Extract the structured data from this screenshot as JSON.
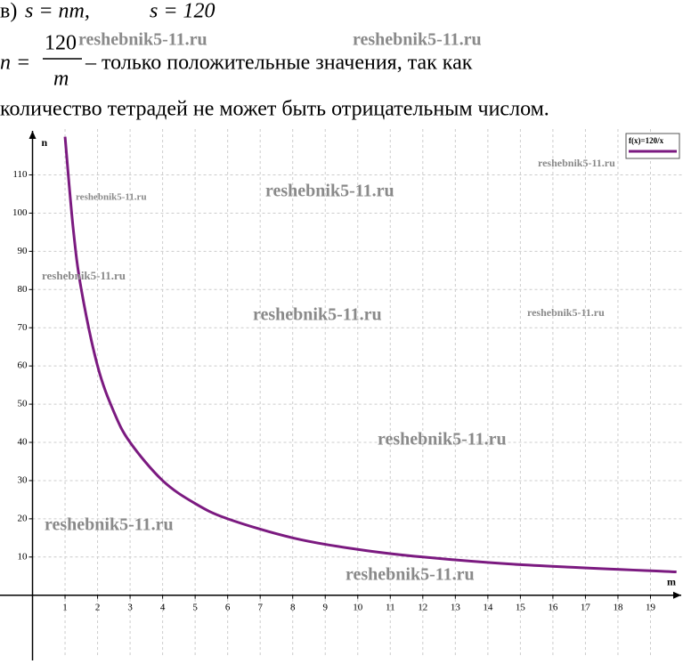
{
  "text": {
    "item": "в)",
    "formula1": "s = nm,",
    "formula2": "s = 120",
    "lhs": "n =",
    "numerator": "120",
    "denominator": "m",
    "rest": "– только положительные значения, так как",
    "line3": "количество тетрадей не может быть отрицательным числом.",
    "watermark": "reshebnik5-11.ru"
  },
  "chart_data": {
    "type": "line",
    "x_label": "m",
    "y_label": "n",
    "x": [
      1,
      1.25,
      1.5,
      2,
      2.5,
      3,
      4,
      5,
      6,
      8,
      10,
      12,
      15,
      19.8
    ],
    "series": [
      {
        "name": "f(x)=120/x",
        "color": "#7b1a80",
        "values": [
          120,
          96,
          80,
          60,
          48,
          40,
          30,
          24,
          20,
          15,
          12,
          10,
          8,
          6.1
        ]
      }
    ],
    "xlim": [
      -1,
      20
    ],
    "ylim": [
      -18,
      122
    ],
    "xticks": [
      1,
      2,
      3,
      4,
      5,
      6,
      7,
      8,
      9,
      10,
      11,
      12,
      13,
      14,
      15,
      16,
      17,
      18,
      19
    ],
    "yticks": [
      10,
      20,
      30,
      40,
      50,
      60,
      70,
      80,
      90,
      100,
      110
    ],
    "grid": true,
    "legend": "top-right"
  }
}
